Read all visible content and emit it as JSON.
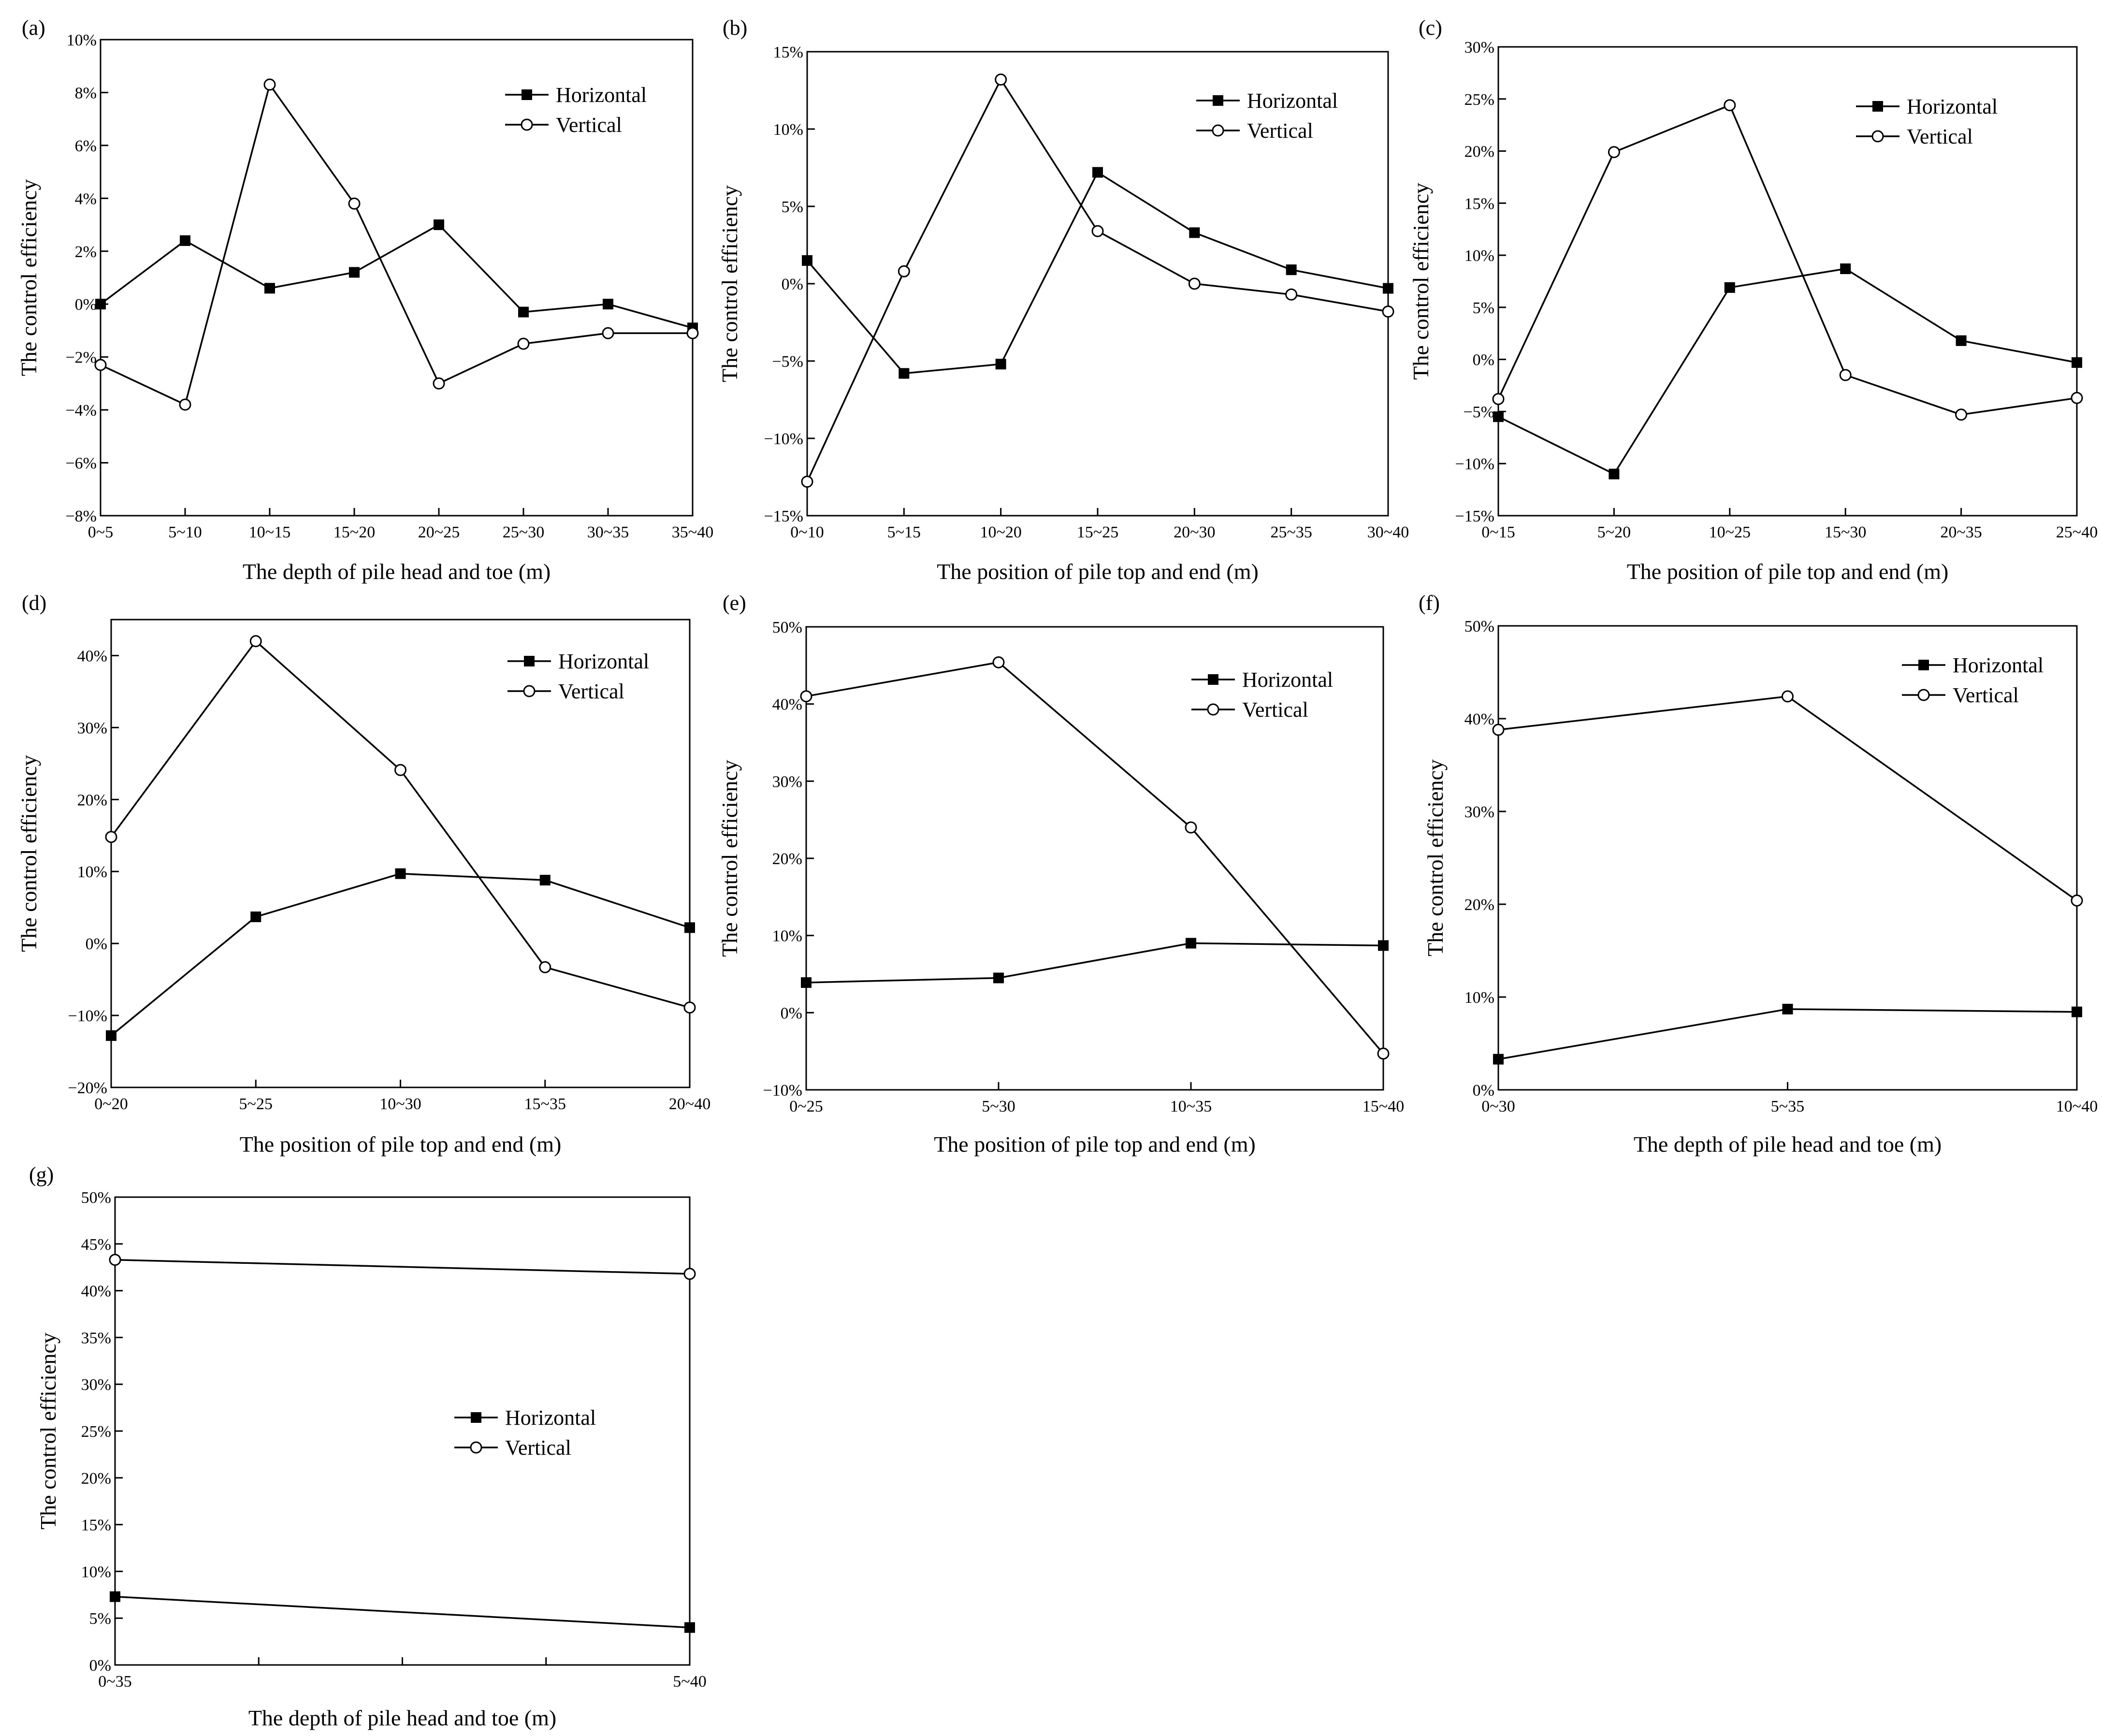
{
  "figure_colors": {
    "line": "#000000",
    "background": "#ffffff",
    "marker_fill_horizontal": "#000000",
    "marker_fill_vertical": "#ffffff"
  },
  "chart_data": [
    {
      "id": "a",
      "panel_label": "(a)",
      "type": "line",
      "xlabel": "The depth of pile head and toe (m)",
      "ylabel": "The control efficiency",
      "categories": [
        "0~5",
        "5~10",
        "10~15",
        "15~20",
        "20~25",
        "25~30",
        "30~35",
        "35~40"
      ],
      "ylim": [
        -8,
        10
      ],
      "yticks": [
        -8,
        -6,
        -4,
        -2,
        0,
        2,
        4,
        6,
        8,
        10
      ],
      "ytick_labels": [
        "−8%",
        "−6%",
        "−4%",
        "−2%",
        "0%",
        "2%",
        "4%",
        "6%",
        "8%",
        "10%"
      ],
      "legend_position": "top-right",
      "series": [
        {
          "name": "Horizontal",
          "marker": "filled-square",
          "values": [
            0.0,
            2.4,
            0.6,
            1.2,
            3.0,
            -0.3,
            0.0,
            -0.9
          ]
        },
        {
          "name": "Vertical",
          "marker": "open-circle",
          "values": [
            -2.3,
            -3.8,
            8.3,
            3.8,
            -3.0,
            -1.5,
            -1.1,
            -1.1
          ]
        }
      ]
    },
    {
      "id": "b",
      "panel_label": "(b)",
      "type": "line",
      "xlabel": "The position of pile top and end (m)",
      "ylabel": "The control efficiency",
      "categories": [
        "0~10",
        "5~15",
        "10~20",
        "15~25",
        "20~30",
        "25~35",
        "30~40"
      ],
      "ylim": [
        -15,
        15
      ],
      "yticks": [
        -15,
        -10,
        -5,
        0,
        5,
        10,
        15
      ],
      "ytick_labels": [
        "−15%",
        "−10%",
        "−5%",
        "0%",
        "5%",
        "10%",
        "15%"
      ],
      "legend_position": "top-right",
      "series": [
        {
          "name": "Horizontal",
          "marker": "filled-square",
          "values": [
            1.5,
            -5.8,
            -5.2,
            7.2,
            3.3,
            0.9,
            -0.3
          ]
        },
        {
          "name": "Vertical",
          "marker": "open-circle",
          "values": [
            -12.8,
            0.8,
            13.2,
            3.4,
            0.0,
            -0.7,
            -1.8
          ]
        }
      ]
    },
    {
      "id": "c",
      "panel_label": "(c)",
      "type": "line",
      "xlabel": "The position of pile top and end (m)",
      "ylabel": "The control efficiency",
      "categories": [
        "0~15",
        "5~20",
        "10~25",
        "15~30",
        "20~35",
        "25~40"
      ],
      "ylim": [
        -15,
        30
      ],
      "yticks": [
        -15,
        -10,
        -5,
        0,
        5,
        10,
        15,
        20,
        25,
        30
      ],
      "ytick_labels": [
        "−15%",
        "−10%",
        "−5%",
        "0%",
        "5%",
        "10%",
        "15%",
        "20%",
        "25%",
        "30%"
      ],
      "legend_position": "top-right",
      "series": [
        {
          "name": "Horizontal",
          "marker": "filled-square",
          "values": [
            -5.5,
            -11.0,
            6.9,
            8.7,
            1.8,
            -0.3
          ]
        },
        {
          "name": "Vertical",
          "marker": "open-circle",
          "values": [
            -3.8,
            19.9,
            24.4,
            -1.5,
            -5.3,
            -3.7
          ]
        }
      ]
    },
    {
      "id": "d",
      "panel_label": "(d)",
      "type": "line",
      "xlabel": "The position of pile top and end (m)",
      "ylabel": "The control efficiency",
      "categories": [
        "0~20",
        "5~25",
        "10~30",
        "15~35",
        "20~40"
      ],
      "ylim": [
        -20,
        45
      ],
      "yticks": [
        -20,
        -10,
        0,
        10,
        20,
        30,
        40
      ],
      "ytick_labels": [
        "−20%",
        "−10%",
        "0%",
        "10%",
        "20%",
        "30%",
        "40%"
      ],
      "legend_position": "top-right",
      "series": [
        {
          "name": "Horizontal",
          "marker": "filled-square",
          "values": [
            -12.8,
            3.7,
            9.7,
            8.8,
            2.2
          ]
        },
        {
          "name": "Vertical",
          "marker": "open-circle",
          "values": [
            14.8,
            42.0,
            24.1,
            -3.3,
            -8.9
          ]
        }
      ]
    },
    {
      "id": "e",
      "panel_label": "(e)",
      "type": "line",
      "xlabel": "The position of pile top and end (m)",
      "ylabel": "The control efficiency",
      "categories": [
        "0~25",
        "5~30",
        "10~35",
        "15~40"
      ],
      "ylim": [
        -10,
        50
      ],
      "yticks": [
        -10,
        0,
        10,
        20,
        30,
        40,
        50
      ],
      "ytick_labels": [
        "−10%",
        "0%",
        "10%",
        "20%",
        "30%",
        "40%",
        "50%"
      ],
      "legend_position": "top-right",
      "series": [
        {
          "name": "Horizontal",
          "marker": "filled-square",
          "values": [
            3.9,
            4.5,
            9.0,
            8.7
          ]
        },
        {
          "name": "Vertical",
          "marker": "open-circle",
          "values": [
            41.0,
            45.4,
            24.0,
            -5.3
          ]
        }
      ]
    },
    {
      "id": "f",
      "panel_label": "(f)",
      "type": "line",
      "xlabel": "The depth of pile head and toe (m)",
      "ylabel": "The control efficiency",
      "categories": [
        "0~30",
        "5~35",
        "10~40"
      ],
      "ylim": [
        0,
        50
      ],
      "yticks": [
        0,
        10,
        20,
        30,
        40,
        50
      ],
      "ytick_labels": [
        "0%",
        "10%",
        "20%",
        "30%",
        "40%",
        "50%"
      ],
      "legend_position": "top-right",
      "series": [
        {
          "name": "Horizontal",
          "marker": "filled-square",
          "values": [
            3.3,
            8.7,
            8.4
          ]
        },
        {
          "name": "Vertical",
          "marker": "open-circle",
          "values": [
            38.8,
            42.4,
            20.4
          ]
        }
      ]
    },
    {
      "id": "g",
      "panel_label": "(g)",
      "type": "line",
      "xlabel": "The depth of pile head and toe (m)",
      "ylabel": "The control efficiency",
      "categories": [
        "0~35",
        "5~40"
      ],
      "ylim": [
        0,
        50
      ],
      "yticks": [
        0,
        5,
        10,
        15,
        20,
        25,
        30,
        35,
        40,
        45,
        50
      ],
      "ytick_labels": [
        "0%",
        "5%",
        "10%",
        "15%",
        "20%",
        "25%",
        "30%",
        "35%",
        "40%",
        "45%",
        "50%"
      ],
      "legend_position": "center",
      "series": [
        {
          "name": "Horizontal",
          "marker": "filled-square",
          "values": [
            7.3,
            4.0
          ]
        },
        {
          "name": "Vertical",
          "marker": "open-circle",
          "values": [
            43.3,
            41.8
          ]
        }
      ]
    }
  ]
}
